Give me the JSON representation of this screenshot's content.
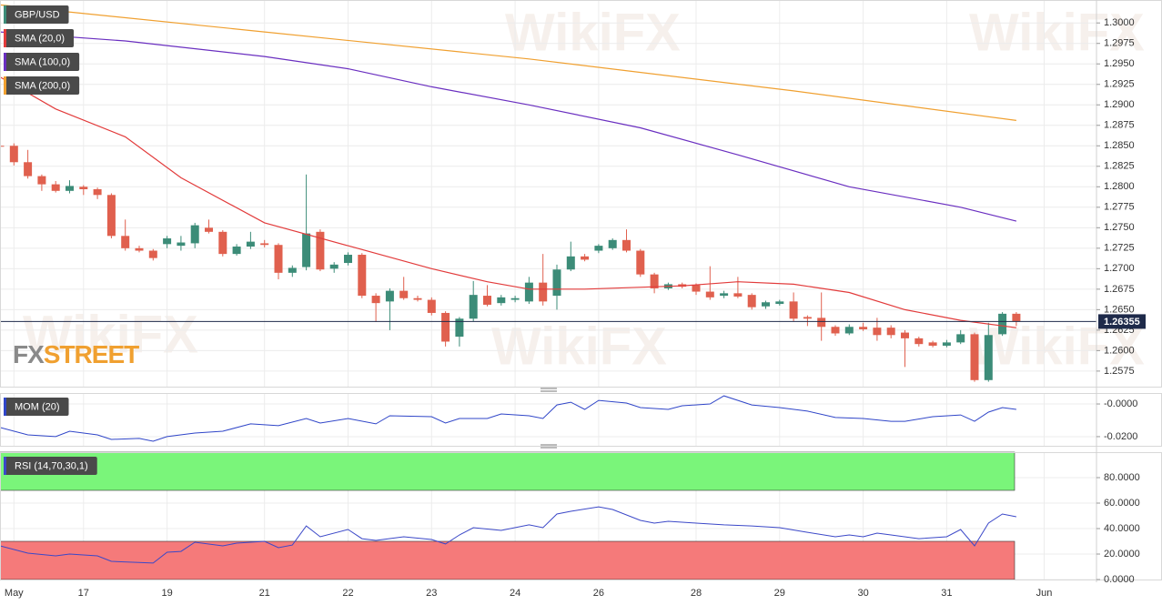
{
  "watermark": "WikiFX",
  "logo": [
    "FX",
    "STREET"
  ],
  "chart_data": [
    {
      "type": "candlestick",
      "name": "GBP/USD",
      "up_color": "#3c8c78",
      "down_color": "#e0604e",
      "categories": [
        null,
        "May",
        null,
        null,
        null,
        null,
        "17",
        null,
        null,
        null,
        null,
        null,
        "19",
        null,
        null,
        null,
        null,
        null,
        null,
        "21",
        null,
        null,
        null,
        null,
        null,
        "22",
        null,
        null,
        null,
        null,
        null,
        "23",
        null,
        null,
        null,
        null,
        null,
        "24",
        null,
        null,
        null,
        null,
        null,
        "26",
        null,
        null,
        null,
        null,
        null,
        null,
        "28",
        null,
        null,
        null,
        null,
        null,
        "29",
        null,
        null,
        null,
        null,
        null,
        "30",
        null,
        null,
        null,
        null,
        null,
        "31",
        null,
        null,
        null,
        null,
        null,
        null,
        "Jun"
      ],
      "open": [
        1.285,
        1.285,
        1.283,
        1.2813,
        1.2803,
        1.2795,
        1.28,
        1.2797,
        1.279,
        1.274,
        1.2725,
        1.2722,
        1.273,
        1.2728,
        1.2731,
        1.275,
        1.2745,
        1.2718,
        1.2727,
        1.2731,
        1.2729,
        1.2695,
        1.2702,
        1.2745,
        1.27,
        1.2707,
        1.2717,
        1.2667,
        1.266,
        1.2673,
        1.2664,
        1.2662,
        1.2646,
        1.2617,
        1.2639,
        1.2667,
        1.2658,
        1.2662,
        1.266,
        1.2683,
        1.2667,
        1.2699,
        1.2715,
        1.2722,
        1.2725,
        1.2735,
        1.2722,
        1.2693,
        1.2676,
        1.2681,
        1.268,
        1.2672,
        1.2667,
        1.267,
        1.2668,
        1.2654,
        1.2657,
        1.266,
        1.2641,
        1.264,
        1.2629,
        1.2621,
        1.2629,
        1.2628,
        1.2628,
        1.2622,
        1.2615,
        1.261,
        1.2606,
        1.261,
        1.262,
        1.2564,
        1.262,
        1.2645,
        null,
        null
      ],
      "high": [
        1.2852,
        1.2853,
        1.2845,
        1.2815,
        1.2807,
        1.2808,
        1.2802,
        1.2799,
        1.2792,
        1.276,
        1.2728,
        1.2724,
        1.274,
        1.274,
        1.2756,
        1.276,
        1.2747,
        1.273,
        1.2745,
        1.2735,
        1.2731,
        1.2704,
        1.2815,
        1.2748,
        1.2708,
        1.272,
        1.2719,
        1.267,
        1.2676,
        1.269,
        1.2667,
        1.2665,
        1.2648,
        1.2641,
        1.2685,
        1.268,
        1.2668,
        1.2667,
        1.269,
        1.2718,
        1.2705,
        1.2733,
        1.2718,
        1.273,
        1.2737,
        1.2748,
        1.2724,
        1.2695,
        1.2683,
        1.2683,
        1.2682,
        1.2703,
        1.2673,
        1.269,
        1.267,
        1.2661,
        1.2662,
        1.2671,
        1.2643,
        1.2671,
        1.2631,
        1.2632,
        1.2634,
        1.264,
        1.2631,
        1.2625,
        1.2617,
        1.2612,
        1.2613,
        1.2625,
        1.2622,
        1.2634,
        1.2647,
        1.2647,
        null,
        null
      ],
      "low": [
        1.2847,
        1.2826,
        1.281,
        1.2795,
        1.2793,
        1.2792,
        1.279,
        1.2785,
        1.2737,
        1.2722,
        1.272,
        1.271,
        1.2725,
        1.2722,
        1.2725,
        1.2743,
        1.2715,
        1.2716,
        1.2724,
        1.2726,
        1.2687,
        1.269,
        1.2698,
        1.2697,
        1.2695,
        1.2704,
        1.2664,
        1.2635,
        1.2625,
        1.2662,
        1.266,
        1.2643,
        1.2605,
        1.2605,
        1.2636,
        1.2654,
        1.2655,
        1.2659,
        1.2657,
        1.2655,
        1.265,
        1.2697,
        1.2709,
        1.2719,
        1.2723,
        1.272,
        1.269,
        1.267,
        1.2674,
        1.2676,
        1.2668,
        1.2662,
        1.2664,
        1.2664,
        1.265,
        1.2651,
        1.2655,
        1.2636,
        1.263,
        1.2612,
        1.2618,
        1.2619,
        1.2624,
        1.2612,
        1.2615,
        1.258,
        1.2605,
        1.2604,
        1.2604,
        1.2608,
        1.2562,
        1.2562,
        1.2618,
        1.263,
        null,
        null
      ],
      "close": [
        1.2849,
        1.283,
        1.2813,
        1.2803,
        1.2795,
        1.2801,
        1.2797,
        1.279,
        1.274,
        1.2725,
        1.2722,
        1.2713,
        1.2737,
        1.2732,
        1.2753,
        1.2745,
        1.2718,
        1.2727,
        1.2733,
        1.2729,
        1.2695,
        1.2701,
        1.2743,
        1.2699,
        1.2705,
        1.2717,
        1.2667,
        1.2658,
        1.2673,
        1.2664,
        1.2662,
        1.2646,
        1.2611,
        1.2639,
        1.2668,
        1.2656,
        1.2665,
        1.2664,
        1.2683,
        1.266,
        1.2699,
        1.2715,
        1.2711,
        1.2728,
        1.2735,
        1.2722,
        1.2693,
        1.2676,
        1.2681,
        1.2678,
        1.2672,
        1.2665,
        1.267,
        1.2666,
        1.2653,
        1.2659,
        1.266,
        1.2639,
        1.2639,
        1.2629,
        1.2621,
        1.2629,
        1.2626,
        1.2619,
        1.2619,
        1.2615,
        1.2608,
        1.2606,
        1.261,
        1.262,
        1.2564,
        1.2619,
        1.2645,
        1.2636,
        null,
        null
      ],
      "series": [
        {
          "name": "SMA (20,0)",
          "color": "#e23b3b",
          "x": [
            0,
            4,
            9,
            13,
            19,
            25,
            31,
            35,
            38,
            42,
            49,
            53,
            57,
            61,
            65,
            69,
            73
          ],
          "values": [
            1.2934,
            1.2895,
            1.2861,
            1.2811,
            1.2756,
            1.2728,
            1.27,
            1.2684,
            1.2675,
            1.2675,
            1.2679,
            1.2684,
            1.2681,
            1.2671,
            1.265,
            1.2637,
            1.2628
          ]
        },
        {
          "name": "SMA (100,0)",
          "color": "#6a2fc0",
          "x": [
            0,
            9,
            19,
            25,
            31,
            38,
            46,
            53,
            61,
            69,
            73
          ],
          "values": [
            1.2989,
            1.2978,
            1.2959,
            1.2944,
            1.2922,
            1.29,
            1.2872,
            1.2839,
            1.28,
            1.2775,
            1.2758
          ]
        },
        {
          "name": "SMA (200,0)",
          "color": "#f0a030",
          "x": [
            0,
            19,
            38,
            57,
            73
          ],
          "values": [
            1.3022,
            1.2989,
            1.2956,
            1.2917,
            1.2881
          ]
        }
      ],
      "last_price": 1.26355,
      "last_price_color": "#1e2a4a",
      "ylim": [
        1.2556,
        1.3028
      ],
      "yticks": [
        {
          "value": 1.3,
          "label": "1.3000"
        },
        1.2975,
        {
          "value": 1.295,
          "label": "1.2950"
        },
        1.2925,
        {
          "value": 1.29,
          "label": "1.2900"
        },
        1.2875,
        {
          "value": 1.285,
          "label": "1.2850"
        },
        1.2825,
        {
          "value": 1.28,
          "label": "1.2800"
        },
        1.2775,
        {
          "value": 1.275,
          "label": "1.2750"
        },
        1.2725,
        {
          "value": 1.27,
          "label": "1.2700"
        },
        1.2675,
        {
          "value": 1.265,
          "label": "1.2650"
        },
        1.2625,
        {
          "value": 1.26,
          "label": "1.2600"
        },
        1.2575
      ],
      "grid": true
    },
    {
      "type": "line",
      "name": "MOM (20)",
      "color": "#2f45c8",
      "x": [
        0,
        2,
        4,
        5,
        7,
        8,
        10,
        11,
        12,
        14,
        16,
        18,
        20,
        22,
        23,
        25,
        27,
        28,
        31,
        32,
        33,
        35,
        36,
        38,
        39,
        40,
        41,
        42,
        43,
        45,
        46,
        48,
        49,
        51,
        52,
        54,
        56,
        58,
        60,
        62,
        64,
        65,
        67,
        69,
        70,
        71,
        72,
        73
      ],
      "values": [
        -0.0144,
        -0.0189,
        -0.02,
        -0.0167,
        -0.0189,
        -0.0217,
        -0.0211,
        -0.0228,
        -0.02,
        -0.0178,
        -0.0167,
        -0.0122,
        -0.0133,
        -0.0089,
        -0.0117,
        -0.0089,
        -0.0122,
        -0.0072,
        -0.0078,
        -0.0117,
        -0.0089,
        -0.0089,
        -0.0061,
        -0.0072,
        -0.0089,
        -0.0006,
        0.0011,
        -0.0033,
        0.0022,
        0.0006,
        -0.0022,
        -0.0033,
        -0.0011,
        0,
        0.005,
        -0.0006,
        -0.0022,
        -0.0044,
        -0.0083,
        -0.0089,
        -0.0106,
        -0.0106,
        -0.0078,
        -0.0067,
        -0.0106,
        -0.005,
        -0.0022,
        -0.0033
      ],
      "ylim": [
        -0.0256,
        0.0067
      ],
      "yticks": [
        {
          "value": 0,
          "label": "-0.0000"
        },
        {
          "value": -0.02,
          "label": "-0.0200"
        }
      ],
      "grid": true
    },
    {
      "type": "line",
      "name": "RSI (14,70,30,1)",
      "color": "#3b48c8",
      "x": [
        0,
        2,
        4,
        5,
        7,
        8,
        11,
        12,
        13,
        14,
        16,
        17,
        19,
        20,
        21,
        22,
        23,
        25,
        26,
        27,
        29,
        31,
        32,
        33,
        34,
        36,
        38,
        39,
        40,
        41,
        43,
        44,
        46,
        47,
        48,
        50,
        52,
        54,
        56,
        58,
        60,
        61,
        62,
        63,
        64,
        66,
        68,
        69,
        70,
        71,
        72,
        73
      ],
      "values": [
        26.4,
        20.7,
        18.6,
        20.0,
        18.6,
        14.3,
        12.9,
        21.4,
        22.1,
        29.3,
        26.4,
        28.6,
        30.0,
        25.0,
        27.1,
        42.1,
        33.6,
        39.3,
        32.1,
        30.7,
        33.6,
        31.4,
        27.9,
        35.0,
        40.7,
        38.6,
        42.9,
        40.7,
        51.4,
        53.6,
        57.1,
        55.0,
        46.4,
        44.3,
        45.7,
        44.3,
        42.9,
        42.1,
        40.7,
        37.1,
        33.6,
        35.0,
        33.6,
        36.4,
        35.0,
        32.1,
        33.6,
        39.3,
        26.4,
        44.3,
        51.4,
        49.3
      ],
      "zones": [
        {
          "from": 70,
          "to": 100,
          "color": "#7af57a"
        },
        {
          "from": 0,
          "to": 30,
          "color": "#f57a7a"
        }
      ],
      "ylim": [
        0,
        100
      ],
      "yticks": [
        {
          "value": 80,
          "label": "80.0000"
        },
        {
          "value": 60,
          "label": "60.0000"
        },
        {
          "value": 40,
          "label": "40.0000"
        },
        {
          "value": 20,
          "label": "20.0000"
        },
        {
          "value": 0,
          "label": "0.0000"
        }
      ],
      "grid": true
    }
  ]
}
